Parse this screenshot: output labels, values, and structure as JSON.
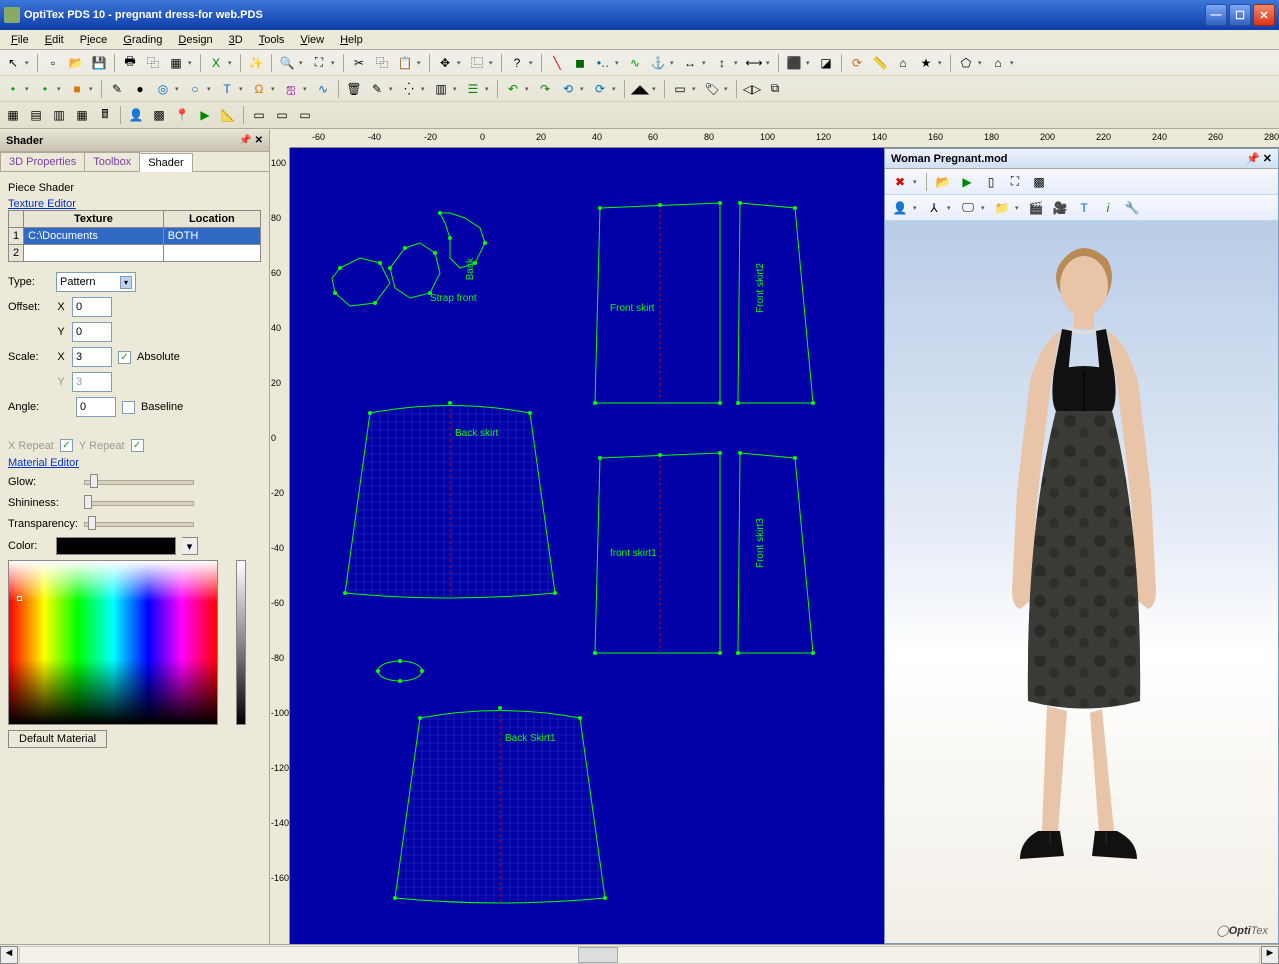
{
  "window": {
    "title": "OptiTex PDS 10 - pregnant dress-for web.PDS"
  },
  "menu": [
    "File",
    "Edit",
    "Piece",
    "Grading",
    "Design",
    "3D",
    "Tools",
    "View",
    "Help"
  ],
  "shader_panel": {
    "title": "Shader",
    "tabs": [
      {
        "label": "3D Properties",
        "active": false
      },
      {
        "label": "Toolbox",
        "active": false
      },
      {
        "label": "Shader",
        "active": true
      }
    ],
    "piece_shader_label": "Piece Shader",
    "texture_editor_label": "Texture Editor",
    "table": {
      "headers": [
        "Texture",
        "Location"
      ],
      "rows": [
        {
          "n": "1",
          "texture": "C:\\Documents",
          "location": "BOTH",
          "selected": true
        },
        {
          "n": "2",
          "texture": "",
          "location": "",
          "selected": false
        }
      ]
    },
    "type_label": "Type:",
    "type_value": "Pattern",
    "offset_label": "Offset:",
    "offset_x": "0",
    "offset_y": "0",
    "scale_label": "Scale:",
    "scale_x": "3",
    "scale_y": "3",
    "absolute_label": "Absolute",
    "absolute_checked": true,
    "angle_label": "Angle:",
    "angle_value": "0",
    "baseline_label": "Baseline",
    "baseline_checked": false,
    "xrepeat_label": "X Repeat",
    "yrepeat_label": "Y Repeat",
    "material_editor_label": "Material Editor",
    "glow_label": "Glow:",
    "glow_val": 0.1,
    "shininess_label": "Shininess:",
    "shininess_val": 0.0,
    "transparency_label": "Transparency:",
    "transparency_val": 0.05,
    "color_label": "Color:",
    "color_value": "#000000",
    "default_material_btn": "Default Material"
  },
  "ruler": {
    "h_ticks": [
      -60,
      -40,
      -20,
      0,
      20,
      40,
      60,
      80,
      100,
      120,
      140,
      160,
      180,
      200,
      220,
      240,
      260,
      280
    ],
    "v_ticks": [
      100,
      80,
      60,
      40,
      20,
      0,
      -20,
      -40,
      -60,
      -80,
      -100,
      -120,
      -140,
      -160
    ]
  },
  "pieces": {
    "back_skirt": "Back skirt",
    "back_skirt1": "Back Skirt1",
    "front_skirt": "Front skirt",
    "front_skirt1": "front skirt1",
    "front_skirt2": "Front skirt2",
    "front_skirt3": "Front skirt3",
    "strap_front": "Strap front",
    "back": "Back"
  },
  "panel3d": {
    "title": "Woman Pregnant.mod",
    "brand_label": "Opti",
    "brand_bold": "Tex"
  },
  "colors": {
    "canvas_bg": "#0000a6",
    "piece_stroke": "#00ff00",
    "piece_point": "#00ff00",
    "dress": "#2d2d2b",
    "skin": "#e6bda0"
  }
}
